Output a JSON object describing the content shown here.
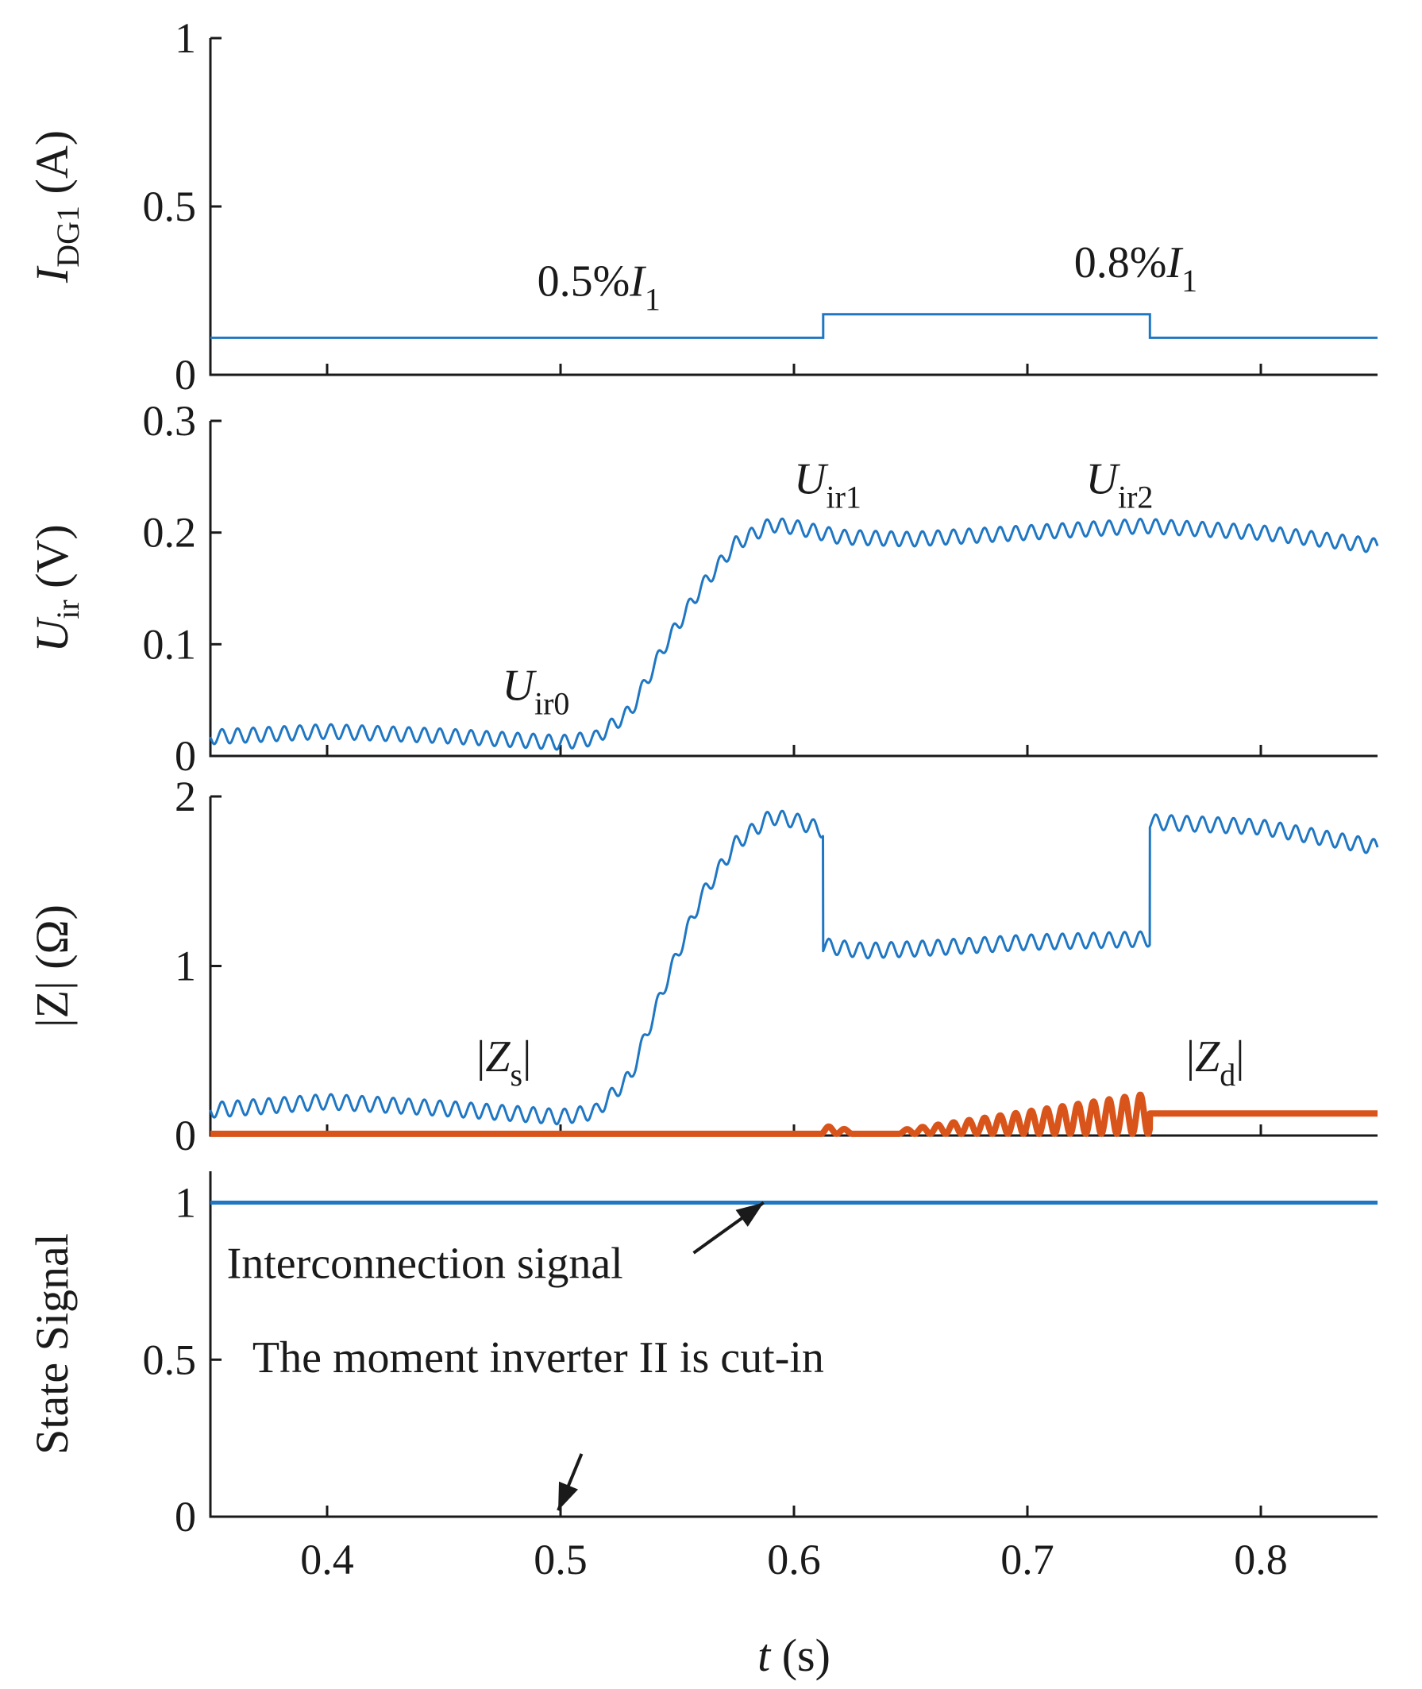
{
  "chart_data": {
    "type": "line",
    "x": {
      "label_var": "t",
      "label_unit": " (s)",
      "range": [
        0.35,
        0.85
      ],
      "ticks": [
        0.4,
        0.5,
        0.6,
        0.7,
        0.8
      ],
      "tick_labels": [
        "0.4",
        "0.5",
        "0.6",
        "0.7",
        "0.8"
      ]
    },
    "colors": {
      "blue": "#1f77c4",
      "orange": "#d9541a",
      "axis": "#1a1a1a"
    },
    "panels": [
      {
        "id": "idg1",
        "ylabel": {
          "main": "I",
          "sub": "DG1",
          "unit": " (A)"
        },
        "ylim": [
          0,
          1
        ],
        "yticks": [
          0,
          0.5,
          1
        ],
        "ytick_labels": [
          "0",
          "0.5",
          "1"
        ],
        "series": [
          {
            "name": "I_DG1",
            "color": "blue",
            "width": 3,
            "points": [
              [
                0.35,
                0.11
              ],
              [
                0.6125,
                0.11
              ],
              [
                0.6125,
                0.18
              ],
              [
                0.7525,
                0.18
              ],
              [
                0.7525,
                0.11
              ],
              [
                0.85,
                0.11
              ]
            ]
          }
        ],
        "annotations": [
          {
            "id": "level1",
            "text": "0.5%",
            "var": "I",
            "sub": "1",
            "at": [
              0.49,
              0.235
            ]
          },
          {
            "id": "level2",
            "text": "0.8%",
            "var": "I",
            "sub": "1",
            "at": [
              0.72,
              0.29
            ]
          }
        ]
      },
      {
        "id": "uir",
        "ylabel": {
          "main": "U",
          "sub": "ir",
          "unit": " (V)"
        },
        "ylim": [
          0,
          0.3
        ],
        "yticks": [
          0,
          0.1,
          0.2,
          0.3
        ],
        "ytick_labels": [
          "0",
          "0.1",
          "0.2",
          "0.3"
        ],
        "series": [
          {
            "name": "U_ir",
            "color": "blue",
            "width": 3,
            "ripple_amp": 0.0065,
            "ripple_freq": 150,
            "envelope": [
              [
                0.35,
                0.017
              ],
              [
                0.4,
                0.022
              ],
              [
                0.45,
                0.018
              ],
              [
                0.5,
                0.012
              ],
              [
                0.515,
                0.016
              ],
              [
                0.53,
                0.04
              ],
              [
                0.545,
                0.1
              ],
              [
                0.56,
                0.15
              ],
              [
                0.575,
                0.19
              ],
              [
                0.59,
                0.207
              ],
              [
                0.6,
                0.205
              ],
              [
                0.62,
                0.196
              ],
              [
                0.65,
                0.194
              ],
              [
                0.7,
                0.2
              ],
              [
                0.75,
                0.206
              ],
              [
                0.8,
                0.2
              ],
              [
                0.85,
                0.188
              ]
            ]
          }
        ],
        "annotations": [
          {
            "id": "uir0",
            "var": "U",
            "sub": "ir0",
            "at": [
              0.475,
              0.05
            ]
          },
          {
            "id": "uir1",
            "var": "U",
            "sub": "ir1",
            "at": [
              0.6,
              0.235
            ]
          },
          {
            "id": "uir2",
            "var": "U",
            "sub": "ir2",
            "at": [
              0.725,
              0.235
            ]
          }
        ]
      },
      {
        "id": "z",
        "ylabel": {
          "text": "|Z| (Ω)"
        },
        "ylim": [
          0,
          2
        ],
        "yticks": [
          0,
          1,
          2
        ],
        "ytick_labels": [
          "0",
          "1",
          "2"
        ],
        "series": [
          {
            "name": "|Z_s|",
            "color": "blue",
            "width": 3,
            "ripple_amp": 0.045,
            "ripple_freq": 150,
            "envelope": [
              [
                0.35,
                0.15
              ],
              [
                0.4,
                0.2
              ],
              [
                0.45,
                0.16
              ],
              [
                0.5,
                0.11
              ],
              [
                0.515,
                0.14
              ],
              [
                0.53,
                0.35
              ],
              [
                0.545,
                0.9
              ],
              [
                0.56,
                1.4
              ],
              [
                0.575,
                1.72
              ],
              [
                0.59,
                1.88
              ],
              [
                0.6,
                1.86
              ],
              [
                0.6125,
                1.8
              ],
              [
                0.6125,
                1.12
              ],
              [
                0.63,
                1.09
              ],
              [
                0.65,
                1.1
              ],
              [
                0.7,
                1.14
              ],
              [
                0.7525,
                1.16
              ],
              [
                0.7525,
                1.85
              ],
              [
                0.8,
                1.82
              ],
              [
                0.85,
                1.7
              ]
            ]
          },
          {
            "name": "|Z_d|",
            "color": "orange",
            "width": 8,
            "pieces": [
              {
                "kind": "flat",
                "from": 0.35,
                "to": 0.612,
                "y": 0.01
              },
              {
                "kind": "burst",
                "from": 0.612,
                "to": 0.625,
                "base": 0.01,
                "amp": [
                  0.05,
                  0.02
                ],
                "freq": 150
              },
              {
                "kind": "flat",
                "from": 0.625,
                "to": 0.645,
                "y": 0.01
              },
              {
                "kind": "burst",
                "from": 0.645,
                "to": 0.7525,
                "base": 0.01,
                "amp": [
                  0.02,
                  0.24
                ],
                "freq": 150
              },
              {
                "kind": "flat",
                "from": 0.7525,
                "to": 0.85,
                "y": 0.13
              }
            ]
          }
        ],
        "annotations": [
          {
            "id": "zs",
            "var": "Z",
            "sub": "s",
            "abs": true,
            "at": [
              0.464,
              0.38
            ]
          },
          {
            "id": "zd",
            "var": "Z",
            "sub": "d",
            "abs": true,
            "at": [
              0.768,
              0.38
            ]
          }
        ]
      },
      {
        "id": "state",
        "ylabel": {
          "text": "State Signal"
        },
        "ylim": [
          0,
          1.1
        ],
        "yticks": [
          0,
          0.5,
          1
        ],
        "ytick_labels": [
          "0",
          "0.5",
          "1"
        ],
        "series": [
          {
            "name": "Interconnection signal",
            "color": "blue",
            "width": 5,
            "points": [
              [
                0.35,
                1
              ],
              [
                0.85,
                1
              ]
            ]
          }
        ],
        "annotations": [
          {
            "id": "interconnection",
            "text": "Interconnection signal",
            "at": [
              0.357,
              0.76
            ],
            "arrow": {
              "from": [
                0.557,
                0.84
              ],
              "to": [
                0.587,
                1.0
              ]
            }
          },
          {
            "id": "cut-in",
            "text": "The moment inverter II is cut-in",
            "at": [
              0.368,
              0.46
            ],
            "arrow": {
              "from": [
                0.509,
                0.2
              ],
              "to": [
                0.499,
                0.02
              ]
            }
          }
        ]
      }
    ]
  }
}
